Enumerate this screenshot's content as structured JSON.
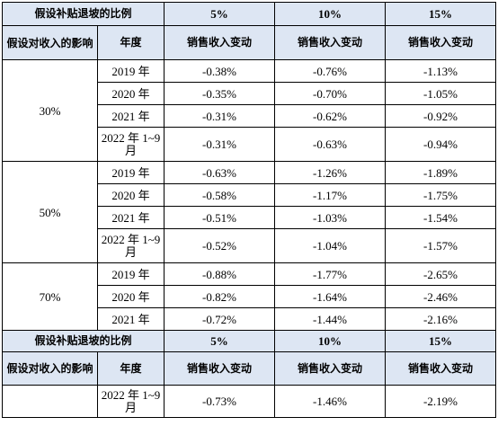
{
  "header": {
    "ratio_label": "假设补贴退坡的比例",
    "levels": [
      "5%",
      "10%",
      "15%"
    ],
    "impact_label": "假设对收入的影响",
    "year_label": "年度",
    "change_label": "销售收入变动"
  },
  "groups": [
    {
      "impact": "30%",
      "rows": [
        {
          "year": "2019 年",
          "values": [
            "-0.38%",
            "-0.76%",
            "-1.13%"
          ]
        },
        {
          "year": "2020 年",
          "values": [
            "-0.35%",
            "-0.70%",
            "-1.05%"
          ]
        },
        {
          "year": "2021 年",
          "values": [
            "-0.31%",
            "-0.62%",
            "-0.92%"
          ]
        },
        {
          "year": "2022 年 1~9 月",
          "values": [
            "-0.31%",
            "-0.63%",
            "-0.94%"
          ]
        }
      ]
    },
    {
      "impact": "50%",
      "rows": [
        {
          "year": "2019 年",
          "values": [
            "-0.63%",
            "-1.26%",
            "-1.89%"
          ]
        },
        {
          "year": "2020 年",
          "values": [
            "-0.58%",
            "-1.17%",
            "-1.75%"
          ]
        },
        {
          "year": "2021 年",
          "values": [
            "-0.51%",
            "-1.03%",
            "-1.54%"
          ]
        },
        {
          "year": "2022 年 1~9 月",
          "values": [
            "-0.52%",
            "-1.04%",
            "-1.57%"
          ]
        }
      ]
    },
    {
      "impact": "70%",
      "rows": [
        {
          "year": "2019 年",
          "values": [
            "-0.88%",
            "-1.77%",
            "-2.65%"
          ]
        },
        {
          "year": "2020 年",
          "values": [
            "-0.82%",
            "-1.64%",
            "-2.46%"
          ]
        },
        {
          "year": "2021 年",
          "values": [
            "-0.72%",
            "-1.44%",
            "-2.16%"
          ]
        }
      ]
    }
  ],
  "continued_row": {
    "impact": "",
    "year": "2022 年 1~9 月",
    "values": [
      "-0.73%",
      "-1.46%",
      "-2.19%"
    ]
  }
}
